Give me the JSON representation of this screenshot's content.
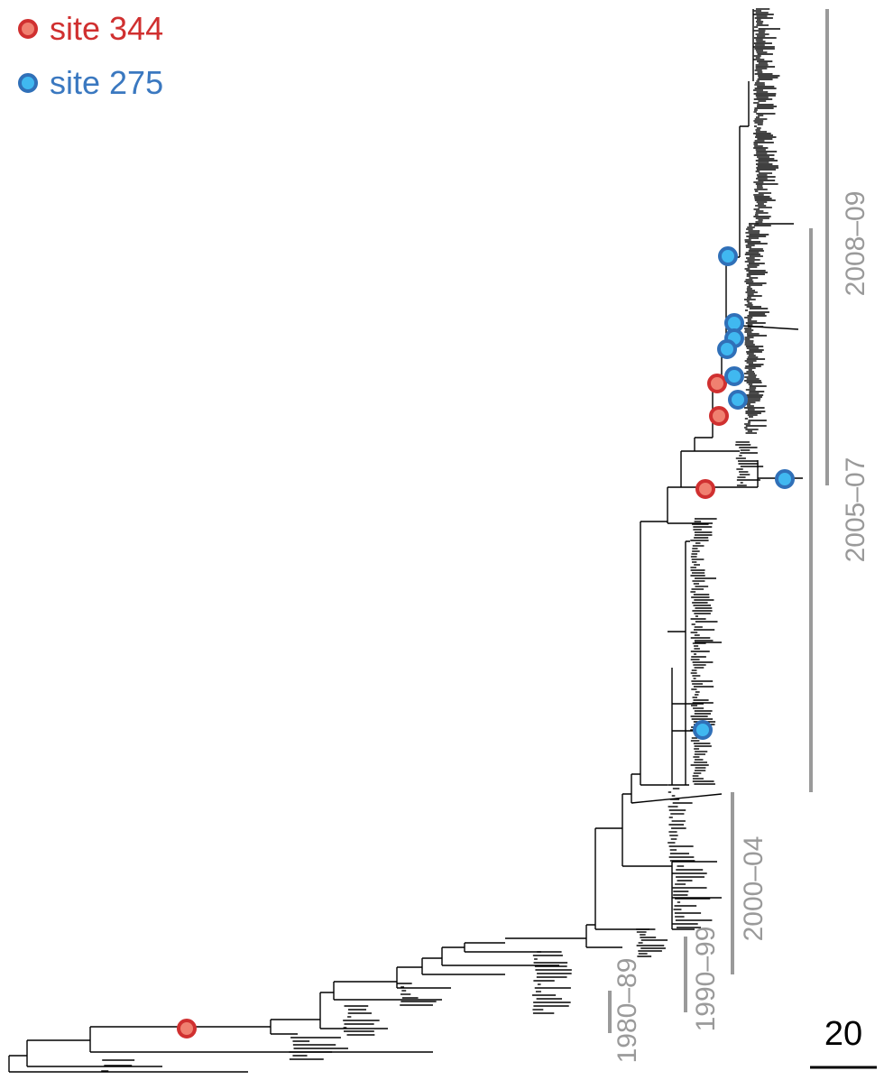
{
  "legend": {
    "items": [
      {
        "label": "site 344",
        "fill": "#f08070",
        "stroke": "#d03030",
        "text_color": "#d03030"
      },
      {
        "label": "site 275",
        "fill": "#40b8f0",
        "stroke": "#3070b8",
        "text_color": "#3a78c0"
      }
    ]
  },
  "periods": [
    {
      "label": "2008–09"
    },
    {
      "label": "2005–07"
    },
    {
      "label": "2000–04"
    },
    {
      "label": "1990–99"
    },
    {
      "label": "1980–89"
    }
  ],
  "scale_bar": {
    "label": "20"
  },
  "colors": {
    "tree": "#000000",
    "period_bar": "#9a9a9a"
  }
}
